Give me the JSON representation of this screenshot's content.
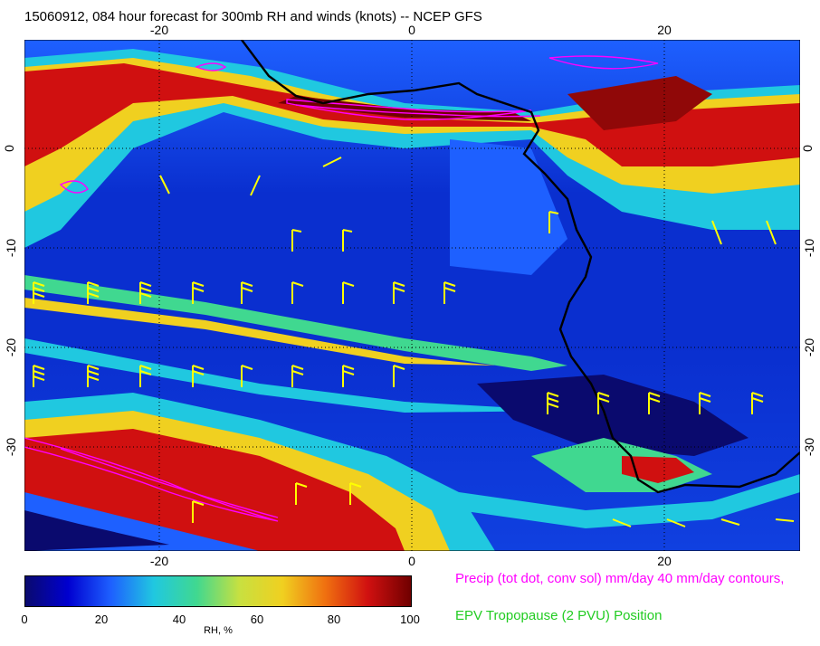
{
  "title": "15060912, 084 hour forecast for 300mb RH and winds (knots) -- NCEP GFS",
  "map": {
    "lon_range": [
      -30,
      31
    ],
    "lat_range": [
      -40,
      10
    ],
    "x_ticks": [
      "-20",
      "0",
      "20"
    ],
    "y_ticks": [
      "0",
      "-10",
      "-20",
      "-30"
    ],
    "colors": {
      "coastline": "#000000",
      "precip_contours": "#ff00ff",
      "wind_barbs": "#ffff00",
      "gridlines": "#000000"
    }
  },
  "legend": {
    "precip": "Precip (tot dot, conv sol) mm/day 40 mm/day contours,",
    "epv": "EPV Tropopause (2 PVU) Position",
    "precip_color": "#ff00ff",
    "epv_color": "#22cc22"
  },
  "colorbar": {
    "labels": [
      "0",
      "20",
      "40",
      "60",
      "80",
      "100"
    ],
    "title": "RH, %",
    "stops": [
      "#0a0a6e",
      "#0000d0",
      "#1e60ff",
      "#20c8e0",
      "#40d890",
      "#c8e040",
      "#f0d020",
      "#f07010",
      "#d01010",
      "#700000"
    ]
  }
}
